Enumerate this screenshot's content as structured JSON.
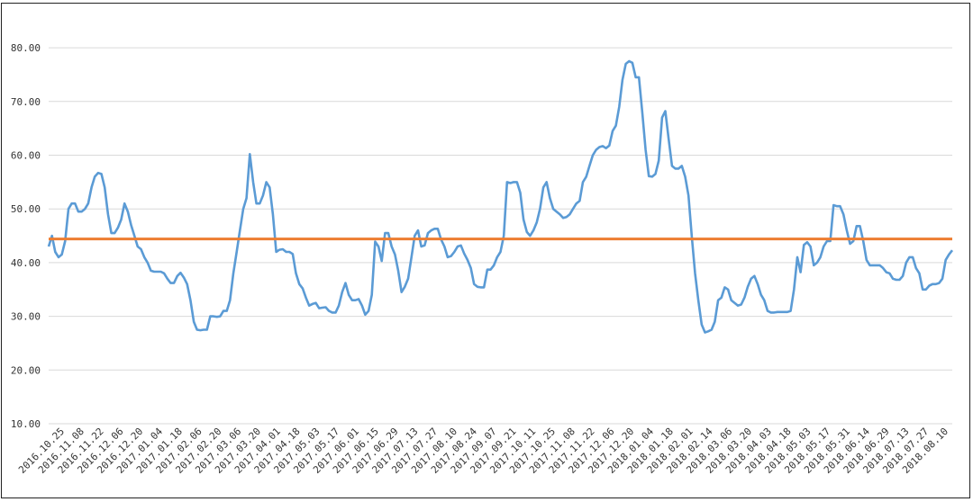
{
  "chart_data": {
    "type": "line",
    "title": "",
    "xlabel": "",
    "ylabel": "",
    "ylim": [
      10,
      85
    ],
    "y_ticks": [
      "10.00",
      "20.00",
      "30.00",
      "40.00",
      "50.00",
      "60.00",
      "70.00",
      "80.00"
    ],
    "grid": "horizontal",
    "x_tick_labels": [
      "2016.10.25",
      "2016.11.08",
      "2016.11.22",
      "2016.12.06",
      "2016.12.20",
      "2017.01.04",
      "2017.01.18",
      "2017.02.06",
      "2017.02.20",
      "2017.03.06",
      "2017.03.20",
      "2017.04.01",
      "2017.04.18",
      "2017.05.03",
      "2017.05.17",
      "2017.06.01",
      "2017.06.15",
      "2017.06.29",
      "2017.07.13",
      "2017.07.27",
      "2017.08.10",
      "2017.08.24",
      "2017.09.07",
      "2017.09.21",
      "2017.10.11",
      "2017.10.25",
      "2017.11.08",
      "2017.11.22",
      "2017.12.06",
      "2017.12.20",
      "2018.01.04",
      "2018.01.18",
      "2018.02.01",
      "2018.02.14",
      "2018.03.06",
      "2018.03.20",
      "2018.04.03",
      "2018.04.18",
      "2018.05.03",
      "2018.05.17",
      "2018.05.31",
      "2018.06.14",
      "2018.06.29",
      "2018.07.13",
      "2018.07.27",
      "2018.08.10"
    ],
    "colors": {
      "series": "#5b9bd5",
      "reference": "#ed7d31"
    },
    "reference_line": 44.4,
    "series": [
      {
        "values": [
          43,
          45,
          42,
          41,
          41.5,
          44,
          50,
          51,
          51,
          49.5,
          49.5,
          50,
          51,
          54,
          56,
          56.7,
          56.5,
          54,
          49,
          45.5,
          45.5,
          46.5,
          48,
          51,
          49.5,
          47,
          45,
          43,
          42.5,
          41,
          40,
          38.5,
          38.3,
          38.3,
          38.3,
          38,
          37,
          36.2,
          36.2,
          37.5,
          38.1,
          37.2,
          36,
          33,
          29,
          27.5,
          27.4,
          27.5,
          27.5,
          30,
          30,
          29.9,
          30,
          31,
          31,
          33,
          38,
          42,
          46,
          50,
          52,
          60.2,
          55,
          51,
          51,
          52.5,
          55,
          54,
          49,
          42,
          42.4,
          42.5,
          42,
          42,
          41.6,
          38,
          36,
          35.2,
          33.5,
          32,
          32.3,
          32.5,
          31.5,
          31.6,
          31.7,
          31,
          30.7,
          30.7,
          32,
          34.5,
          36.2,
          34,
          33,
          33,
          33.2,
          32,
          30.3,
          31,
          34,
          43.9,
          43,
          40.3,
          45.5,
          45.5,
          43,
          41.5,
          38.5,
          34.5,
          35.5,
          37,
          41,
          45,
          46,
          43,
          43.2,
          45.5,
          46,
          46.3,
          46.3,
          44.3,
          43,
          41,
          41.2,
          42,
          43,
          43.2,
          41.7,
          40.5,
          39,
          36,
          35.5,
          35.4,
          35.4,
          38.7,
          38.7,
          39.5,
          41,
          42,
          45,
          55,
          54.8,
          55,
          55,
          53,
          48,
          45.7,
          45,
          46,
          47.5,
          50,
          54,
          55,
          52,
          50,
          49.5,
          49,
          48.3,
          48.5,
          49,
          50,
          51,
          51.5,
          55,
          56,
          58,
          60,
          61,
          61.5,
          61.7,
          61.3,
          61.8,
          64.5,
          65.5,
          69,
          74,
          77,
          77.5,
          77.2,
          74.5,
          74.5,
          68,
          61,
          56.1,
          56,
          56.5,
          59,
          67,
          68.2,
          63,
          58,
          57.5,
          57.5,
          58,
          56,
          52.5,
          45,
          38,
          33,
          28.5,
          27,
          27.2,
          27.5,
          29,
          33,
          33.5,
          35.4,
          35,
          33,
          32.5,
          32,
          32.2,
          33.5,
          35.5,
          37,
          37.5,
          36,
          34,
          33,
          31,
          30.7,
          30.7,
          30.8,
          30.8,
          30.8,
          30.8,
          31,
          35,
          41,
          38.2,
          43.3,
          43.8,
          43,
          39.5,
          40,
          41,
          43,
          44,
          44,
          50.7,
          50.5,
          50.5,
          49,
          46,
          43.5,
          44,
          46.8,
          46.8,
          44,
          40.5,
          39.5,
          39.5,
          39.5,
          39.5,
          39,
          38.2,
          38,
          37,
          36.8,
          36.8,
          37.5,
          40,
          41,
          41,
          39,
          38,
          35,
          35,
          35.7,
          36,
          36,
          36.2,
          37,
          40.5,
          41.5,
          42.3
        ]
      }
    ]
  }
}
